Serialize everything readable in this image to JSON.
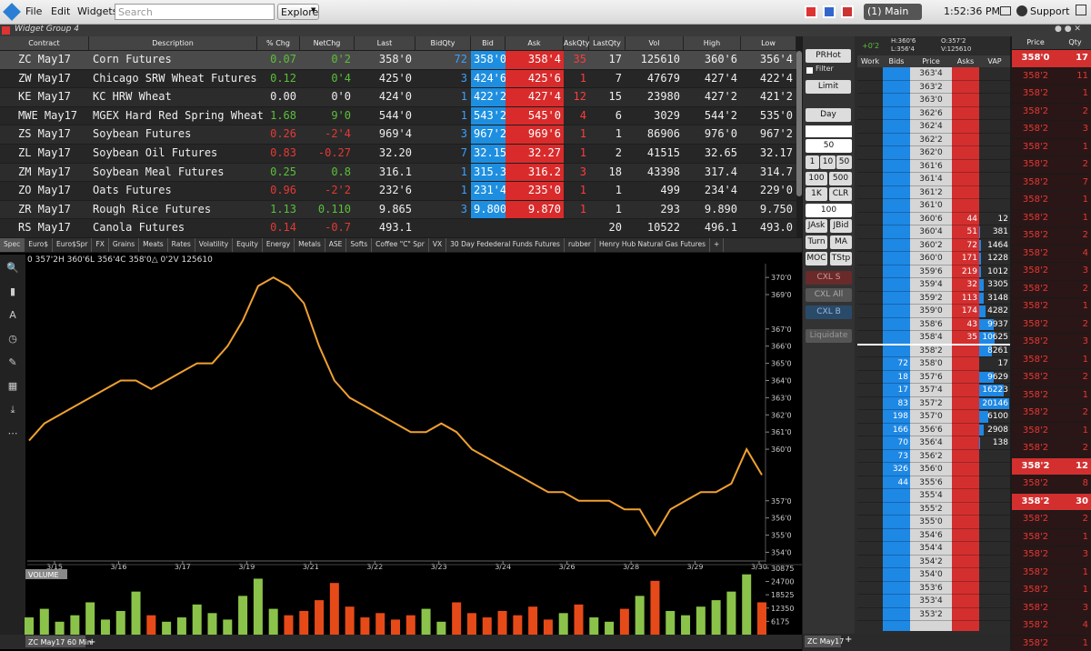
{
  "menu": {
    "items": [
      "File",
      "Edit",
      "Widgets"
    ],
    "search_placeholder": "Search",
    "explore": "Explore",
    "workspace": "(1) Main",
    "time": "1:52:36 PM",
    "support": "Support"
  },
  "widget_group": "Widget Group 4",
  "quote_table": {
    "columns": [
      "Contract",
      "Description",
      "% Chg",
      "NetChg",
      "Last",
      "BidQty",
      "Bid",
      "Ask",
      "AskQty",
      "LastQty",
      "Vol",
      "High",
      "Low"
    ],
    "rows": [
      [
        "ZC May17",
        "Corn Futures",
        "0.07",
        "0'2",
        "358'0",
        "72",
        "358'0",
        "358'4",
        "35",
        "17",
        "125610",
        "360'6",
        "356'4"
      ],
      [
        "ZW May17",
        "Chicago SRW Wheat Futures",
        "0.12",
        "0'4",
        "425'0",
        "3",
        "424'6",
        "425'6",
        "1",
        "7",
        "47679",
        "427'4",
        "422'4"
      ],
      [
        "KE May17",
        "KC HRW Wheat",
        "0.00",
        "0'0",
        "424'0",
        "1",
        "422'2",
        "427'4",
        "12",
        "15",
        "23980",
        "427'2",
        "421'2"
      ],
      [
        "MWE May17",
        "MGEX Hard Red Spring Wheat",
        "1.68",
        "9'0",
        "544'0",
        "1",
        "543'2",
        "545'0",
        "4",
        "6",
        "3029",
        "544'2",
        "535'0"
      ],
      [
        "ZS May17",
        "Soybean Futures",
        "0.26",
        "-2'4",
        "969'4",
        "3",
        "967'2",
        "969'6",
        "1",
        "1",
        "86906",
        "976'0",
        "967'2"
      ],
      [
        "ZL May17",
        "Soybean Oil Futures",
        "0.83",
        "-0.27",
        "32.20",
        "7",
        "32.15",
        "32.27",
        "1",
        "2",
        "41515",
        "32.65",
        "32.17"
      ],
      [
        "ZM May17",
        "Soybean Meal Futures",
        "0.25",
        "0.8",
        "316.1",
        "1",
        "315.3",
        "316.2",
        "3",
        "18",
        "43398",
        "317.4",
        "314.7"
      ],
      [
        "ZO May17",
        "Oats Futures",
        "0.96",
        "-2'2",
        "232'6",
        "1",
        "231'4",
        "235'0",
        "1",
        "1",
        "499",
        "234'4",
        "229'0"
      ],
      [
        "ZR May17",
        "Rough Rice Futures",
        "1.13",
        "0.110",
        "9.865",
        "3",
        "9.800",
        "9.870",
        "1",
        "1",
        "293",
        "9.890",
        "9.750"
      ],
      [
        "RS May17",
        "Canola Futures",
        "0.14",
        "-0.7",
        "493.1",
        null,
        null,
        null,
        null,
        "20",
        "10522",
        "496.1",
        "493.0"
      ]
    ]
  },
  "tabs": [
    "Spec",
    "Euro$",
    "Euro$Spr",
    "FX",
    "Grains",
    "Meats",
    "Rates",
    "Volatility",
    "Equity",
    "Energy",
    "Metals",
    "ASE",
    "Softs",
    "Coffee \"C\" Spr",
    "VX",
    "30 Day Fedederal Funds Futures",
    "rubber",
    "Henry Hub Natural Gas Futures",
    "+"
  ],
  "chart_data": {
    "type": "line",
    "header": "0 357'2H 360'6L 356'4C 358'0△ 0'2V 125610",
    "color": "#f0a030",
    "x_labels": [
      "3/15",
      "3/16",
      "3/17",
      "3/19",
      "3/21",
      "3/22",
      "3/23",
      "3/24",
      "3/26",
      "3/28",
      "3/29",
      "3/30"
    ],
    "values": [
      360.5,
      361.5,
      362,
      362.5,
      363,
      363.5,
      364,
      364,
      363.5,
      364,
      364.5,
      365,
      365,
      366,
      367.5,
      369.5,
      370,
      369.5,
      368.5,
      366,
      364,
      363,
      362.5,
      362,
      361.5,
      361,
      361,
      361.5,
      361,
      360,
      359.5,
      359,
      358.5,
      358,
      357.5,
      357.5,
      357,
      357,
      357,
      356.5,
      356.5,
      355,
      356.5,
      357,
      357.5,
      357.5,
      358,
      360,
      358.5
    ],
    "ylim": [
      353.6,
      370.8
    ],
    "yticks": [
      {
        "value": 370,
        "label": "370'0"
      },
      {
        "value": 369,
        "label": "369'0"
      },
      {
        "value": 367,
        "label": "367'0"
      },
      {
        "value": 366,
        "label": "366'0"
      },
      {
        "value": 365,
        "label": "365'0"
      },
      {
        "value": 364,
        "label": "364'0"
      },
      {
        "value": 363,
        "label": "363'0"
      },
      {
        "value": 362,
        "label": "362'0"
      },
      {
        "value": 361,
        "label": "361'0"
      },
      {
        "value": 360,
        "label": "360'0"
      },
      {
        "value": 357,
        "label": "357'0"
      },
      {
        "value": 356,
        "label": "356'0"
      },
      {
        "value": 355,
        "label": "355'0"
      },
      {
        "value": 354,
        "label": "354'0"
      }
    ],
    "volume": {
      "label": "VOLUME",
      "values": [
        8000,
        12000,
        6000,
        9000,
        15000,
        7000,
        11000,
        20000,
        9000,
        6000,
        8000,
        14000,
        10000,
        7000,
        18000,
        26000,
        12000,
        9000,
        11000,
        16000,
        24000,
        13000,
        8000,
        10000,
        7000,
        9000,
        12000,
        6000,
        15000,
        10000,
        8000,
        11000,
        9000,
        13000,
        7000,
        10000,
        14000,
        8000,
        6000,
        12000,
        18000,
        25000,
        11000,
        9000,
        13000,
        16000,
        20000,
        28000,
        15000
      ],
      "ylim": [
        0,
        32100
      ],
      "yticks": [
        6175,
        12350,
        18525,
        24700,
        30875
      ]
    },
    "tab": "ZC May17 60 Min"
  },
  "dom": {
    "controls": {
      "route": "PRHot",
      "filter": "Filter",
      "order_type": "Limit",
      "tif": "Day",
      "qty": "50",
      "qty_buttons": [
        "1",
        "10",
        "50",
        "100",
        "500",
        "1K",
        "CLR"
      ],
      "qty2": "100",
      "actions": [
        "JAsk",
        "JBid",
        "Turn",
        "MA",
        "MOC",
        "TStp"
      ],
      "cancel": [
        "CXL S",
        "CXL All",
        "CXL B"
      ],
      "liquidate": "Liquidate"
    },
    "net_change": "+0'2",
    "high": "H:360'6",
    "low": "L:356'4",
    "open": "O:357'2",
    "volume": "V:125610",
    "columns": [
      "Work",
      "Bids",
      "Price",
      "Asks",
      "VAP"
    ],
    "rows": [
      {
        "price": "363'4",
        "bids": null,
        "asks": null,
        "vap": null
      },
      {
        "price": "363'2",
        "bids": null,
        "asks": null,
        "vap": null
      },
      {
        "price": "363'0",
        "bids": null,
        "asks": null,
        "vap": null
      },
      {
        "price": "362'6",
        "bids": null,
        "asks": null,
        "vap": null
      },
      {
        "price": "362'4",
        "bids": null,
        "asks": null,
        "vap": null
      },
      {
        "price": "362'2",
        "bids": null,
        "asks": null,
        "vap": null
      },
      {
        "price": "362'0",
        "bids": null,
        "asks": null,
        "vap": null
      },
      {
        "price": "361'6",
        "bids": null,
        "asks": null,
        "vap": null
      },
      {
        "price": "361'4",
        "bids": null,
        "asks": null,
        "vap": null
      },
      {
        "price": "361'2",
        "bids": null,
        "asks": null,
        "vap": null
      },
      {
        "price": "361'0",
        "bids": null,
        "asks": null,
        "vap": null
      },
      {
        "price": "360'6",
        "bids": null,
        "asks": 44,
        "vap": 12
      },
      {
        "price": "360'4",
        "bids": null,
        "asks": 51,
        "vap": 381
      },
      {
        "price": "360'2",
        "bids": null,
        "asks": 72,
        "vap": 1464
      },
      {
        "price": "360'0",
        "bids": null,
        "asks": 171,
        "vap": 1228
      },
      {
        "price": "359'6",
        "bids": null,
        "asks": 219,
        "vap": 1012
      },
      {
        "price": "359'4",
        "bids": null,
        "asks": 32,
        "vap": 3305
      },
      {
        "price": "359'2",
        "bids": null,
        "asks": 113,
        "vap": 3148
      },
      {
        "price": "359'0",
        "bids": null,
        "asks": 174,
        "vap": 4282
      },
      {
        "price": "358'6",
        "bids": null,
        "asks": 43,
        "vap": 9937
      },
      {
        "price": "358'4",
        "bids": null,
        "asks": 35,
        "vap": 10625
      },
      {
        "price": "358'2",
        "bids": null,
        "asks": null,
        "vap": 8261
      },
      {
        "price": "358'0",
        "bids": 72,
        "asks": null,
        "vap": 17
      },
      {
        "price": "357'6",
        "bids": 18,
        "asks": null,
        "vap": 9629
      },
      {
        "price": "357'4",
        "bids": 17,
        "asks": null,
        "vap": 16223
      },
      {
        "price": "357'2",
        "bids": 83,
        "asks": null,
        "vap": 20146
      },
      {
        "price": "357'0",
        "bids": 198,
        "asks": null,
        "vap": 6100
      },
      {
        "price": "356'6",
        "bids": 166,
        "asks": null,
        "vap": 2908
      },
      {
        "price": "356'4",
        "bids": 70,
        "asks": null,
        "vap": 138
      },
      {
        "price": "356'2",
        "bids": 73,
        "asks": null,
        "vap": null
      },
      {
        "price": "356'0",
        "bids": 326,
        "asks": null,
        "vap": null
      },
      {
        "price": "355'6",
        "bids": 44,
        "asks": null,
        "vap": null
      },
      {
        "price": "355'4",
        "bids": null,
        "asks": null,
        "vap": null
      },
      {
        "price": "355'2",
        "bids": null,
        "asks": null,
        "vap": null
      },
      {
        "price": "355'0",
        "bids": null,
        "asks": null,
        "vap": null
      },
      {
        "price": "354'6",
        "bids": null,
        "asks": null,
        "vap": null
      },
      {
        "price": "354'4",
        "bids": null,
        "asks": null,
        "vap": null
      },
      {
        "price": "354'2",
        "bids": null,
        "asks": null,
        "vap": null
      },
      {
        "price": "354'0",
        "bids": null,
        "asks": null,
        "vap": null
      },
      {
        "price": "353'6",
        "bids": null,
        "asks": null,
        "vap": null
      },
      {
        "price": "353'4",
        "bids": null,
        "asks": null,
        "vap": null
      },
      {
        "price": "353'2",
        "bids": null,
        "asks": null,
        "vap": null
      }
    ],
    "tab": "ZC May17"
  },
  "time_and_sales": {
    "columns": [
      "Price",
      "Qty"
    ],
    "rows": [
      {
        "price": "358'0",
        "qty": 17,
        "highlight": true
      },
      {
        "price": "358'2",
        "qty": 11
      },
      {
        "price": "358'2",
        "qty": 1
      },
      {
        "price": "358'2",
        "qty": 2
      },
      {
        "price": "358'2",
        "qty": 3
      },
      {
        "price": "358'2",
        "qty": 1
      },
      {
        "price": "358'2",
        "qty": 2
      },
      {
        "price": "358'2",
        "qty": 7
      },
      {
        "price": "358'2",
        "qty": 1
      },
      {
        "price": "358'2",
        "qty": 1
      },
      {
        "price": "358'2",
        "qty": 2
      },
      {
        "price": "358'2",
        "qty": 4
      },
      {
        "price": "358'2",
        "qty": 3
      },
      {
        "price": "358'2",
        "qty": 2
      },
      {
        "price": "358'2",
        "qty": 1
      },
      {
        "price": "358'2",
        "qty": 2
      },
      {
        "price": "358'2",
        "qty": 3
      },
      {
        "price": "358'2",
        "qty": 1
      },
      {
        "price": "358'2",
        "qty": 2
      },
      {
        "price": "358'2",
        "qty": 1
      },
      {
        "price": "358'2",
        "qty": 2
      },
      {
        "price": "358'2",
        "qty": 1
      },
      {
        "price": "358'2",
        "qty": 2
      },
      {
        "price": "358'2",
        "qty": 12,
        "highlight": true
      },
      {
        "price": "358'2",
        "qty": 8
      },
      {
        "price": "358'2",
        "qty": 30,
        "highlight": true
      },
      {
        "price": "358'2",
        "qty": 2
      },
      {
        "price": "358'2",
        "qty": 1
      },
      {
        "price": "358'2",
        "qty": 3
      },
      {
        "price": "358'2",
        "qty": 1
      },
      {
        "price": "358'2",
        "qty": 1
      },
      {
        "price": "358'2",
        "qty": 3
      },
      {
        "price": "358'2",
        "qty": 4
      },
      {
        "price": "358'2",
        "qty": 1
      }
    ]
  }
}
